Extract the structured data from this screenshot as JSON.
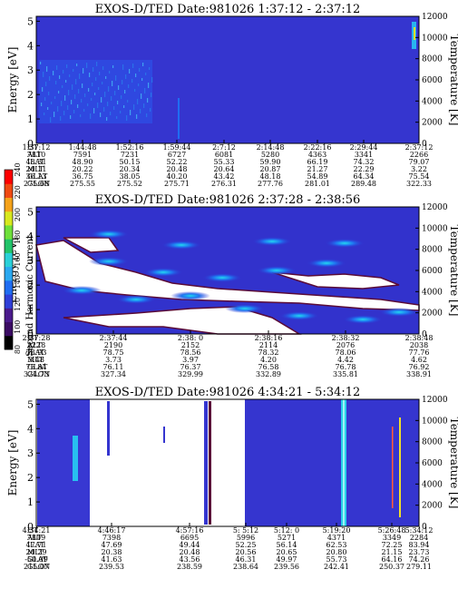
{
  "colorbar": {
    "label": "Second Harmonic Current",
    "ticks": [
      "80",
      "100",
      "120",
      "140",
      "160",
      "180",
      "200",
      "220",
      "240"
    ],
    "colors": [
      "#000000",
      "#3a0b63",
      "#4a1a8c",
      "#2f3fd8",
      "#1f6df2",
      "#2aa8f0",
      "#2ad0d8",
      "#22c46a",
      "#6ee03a",
      "#d8e81e",
      "#f5a21a",
      "#f04a12",
      "#ff0000"
    ]
  },
  "chart_data": [
    {
      "type": "heatmap",
      "title": "EXOS-D/TED   Date:981026   1:37:12 - 2:37:12",
      "ylabel": "Energy [eV]",
      "ylabel_right": "Temperature [K]",
      "yticks": [
        "0",
        "1",
        "2",
        "3",
        "4",
        "5"
      ],
      "yticks_right": [
        "0",
        "2000",
        "4000",
        "6000",
        "8000",
        "10000",
        "12000"
      ],
      "ylim": [
        0,
        5.2
      ],
      "ylim_right": [
        0,
        12000
      ],
      "rows": [
        "UT",
        "ALT",
        "ILAT",
        "MLT",
        "GLAT",
        "GLON"
      ],
      "ephemeris": [
        [
          "1:37:12",
          "1:44:48",
          "1:52:16",
          "1:59:44",
          "2:7:12",
          "2:14:48",
          "2:22:16",
          "2:29:44",
          "2:37:12"
        ],
        [
          "7810",
          "7591",
          "7231",
          "6727",
          "6081",
          "5280",
          "4363",
          "3341",
          "2266"
        ],
        [
          "48.31",
          "48.90",
          "50.15",
          "52.22",
          "55.33",
          "59.90",
          "66.19",
          "74.32",
          "79.07"
        ],
        [
          "20.11",
          "20.22",
          "20.34",
          "20.48",
          "20.64",
          "20.87",
          "21.27",
          "22.29",
          "3.22"
        ],
        [
          "36.13",
          "36.75",
          "38.05",
          "40.20",
          "43.42",
          "48.18",
          "54.89",
          "64.34",
          "75.54"
        ],
        [
          "275.68",
          "275.55",
          "275.52",
          "275.71",
          "276.31",
          "277.76",
          "281.01",
          "289.48",
          "322.33"
        ]
      ]
    },
    {
      "type": "heatmap",
      "title": "EXOS-D/TED   Date:981026   2:37:28 - 2:38:56",
      "ylabel": "Energy [eV]",
      "ylabel_right": "Temperature [K]",
      "yticks": [
        "0",
        "1",
        "2",
        "3",
        "4",
        "5"
      ],
      "yticks_right": [
        "0",
        "2000",
        "4000",
        "6000",
        "8000",
        "10000",
        "12000"
      ],
      "ylim": [
        0,
        5.2
      ],
      "ylim_right": [
        0,
        12000
      ],
      "rows": [
        "UT",
        "ALT",
        "ILAT",
        "MLT",
        "GLAT",
        "GLON"
      ],
      "ephemeris": [
        [
          "2:37:28",
          "2:37:44",
          "2:38: 0",
          "2:38:16",
          "2:38:32",
          "2:38:48"
        ],
        [
          "2228",
          "2190",
          "2152",
          "2114",
          "2076",
          "2038"
        ],
        [
          "78.93",
          "78.75",
          "78.56",
          "78.32",
          "78.06",
          "77.76"
        ],
        [
          "3.48",
          "3.73",
          "3.97",
          "4.20",
          "4.42",
          "4.62"
        ],
        [
          "75.84",
          "76.11",
          "76.37",
          "76.58",
          "76.78",
          "76.92"
        ],
        [
          "324.73",
          "327.34",
          "329.99",
          "332.89",
          "335.81",
          "338.91"
        ]
      ]
    },
    {
      "type": "heatmap",
      "title": "EXOS-D/TED   Date:981026   4:34:21 - 5:34:12",
      "ylabel": "Energy [eV]",
      "ylabel_right": "Temperature [K]",
      "yticks": [
        "0",
        "1",
        "2",
        "3",
        "4",
        "5"
      ],
      "yticks_right": [
        "0",
        "2000",
        "4000",
        "6000",
        "8000",
        "10000",
        "12000"
      ],
      "ylim": [
        0,
        5.2
      ],
      "ylim_right": [
        0,
        12000
      ],
      "rows": [
        "UT",
        "ALT",
        "ILAT",
        "MLT",
        "GLAT",
        "GLON"
      ],
      "ephemeris": [
        [
          "4:34:21",
          "4:46:17",
          "4:57:16",
          "5: 5:12",
          "5:12: 0",
          "5:19:20",
          "5:26:48",
          "5:34:12"
        ],
        [
          "7809",
          "7398",
          "6695",
          "5996",
          "5271",
          "4371",
          "3349",
          "2284"
        ],
        [
          "47.71",
          "47.69",
          "49.44",
          "52.25",
          "56.14",
          "62.53",
          "72.25",
          "83.94"
        ],
        [
          "20.29",
          "20.38",
          "20.48",
          "20.56",
          "20.65",
          "20.80",
          "21.15",
          "23.73"
        ],
        [
          "-50.09",
          "41.63",
          "43.56",
          "46.31",
          "49.97",
          "55.73",
          "64.16",
          "74.26"
        ],
        [
          "215.07",
          "239.53",
          "238.59",
          "238.64",
          "239.56",
          "242.41",
          "250.37",
          "279.11"
        ]
      ]
    }
  ]
}
